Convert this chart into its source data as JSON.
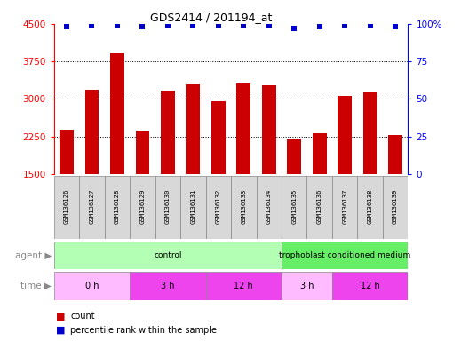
{
  "title": "GDS2414 / 201194_at",
  "samples": [
    "GSM136126",
    "GSM136127",
    "GSM136128",
    "GSM136129",
    "GSM136130",
    "GSM136131",
    "GSM136132",
    "GSM136133",
    "GSM136134",
    "GSM136135",
    "GSM136136",
    "GSM136137",
    "GSM136138",
    "GSM136139"
  ],
  "counts": [
    2390,
    3180,
    3920,
    2370,
    3160,
    3290,
    2960,
    3310,
    3280,
    2190,
    2310,
    3060,
    3130,
    2280
  ],
  "percentile_ranks": [
    98,
    99,
    99,
    98,
    99,
    99,
    99,
    99,
    99,
    97,
    98,
    99,
    99,
    98
  ],
  "bar_color": "#cc0000",
  "dot_color": "#0000cc",
  "ylim_left": [
    1500,
    4500
  ],
  "ylim_right": [
    0,
    100
  ],
  "yticks_left": [
    1500,
    2250,
    3000,
    3750,
    4500
  ],
  "yticks_right": [
    0,
    25,
    50,
    75,
    100
  ],
  "agent_groups": [
    {
      "label": "control",
      "start": 0,
      "end": 9,
      "color": "#b3ffb3"
    },
    {
      "label": "trophoblast conditioned medium",
      "start": 9,
      "end": 14,
      "color": "#66ee66"
    }
  ],
  "time_groups": [
    {
      "label": "0 h",
      "start": 0,
      "end": 3,
      "color": "#ffbbff"
    },
    {
      "label": "3 h",
      "start": 3,
      "end": 6,
      "color": "#ee44ee"
    },
    {
      "label": "12 h",
      "start": 6,
      "end": 9,
      "color": "#ee44ee"
    },
    {
      "label": "3 h",
      "start": 9,
      "end": 11,
      "color": "#ffbbff"
    },
    {
      "label": "12 h",
      "start": 11,
      "end": 14,
      "color": "#ee44ee"
    }
  ],
  "bg_color": "#ffffff",
  "sample_bg": "#d8d8d8"
}
